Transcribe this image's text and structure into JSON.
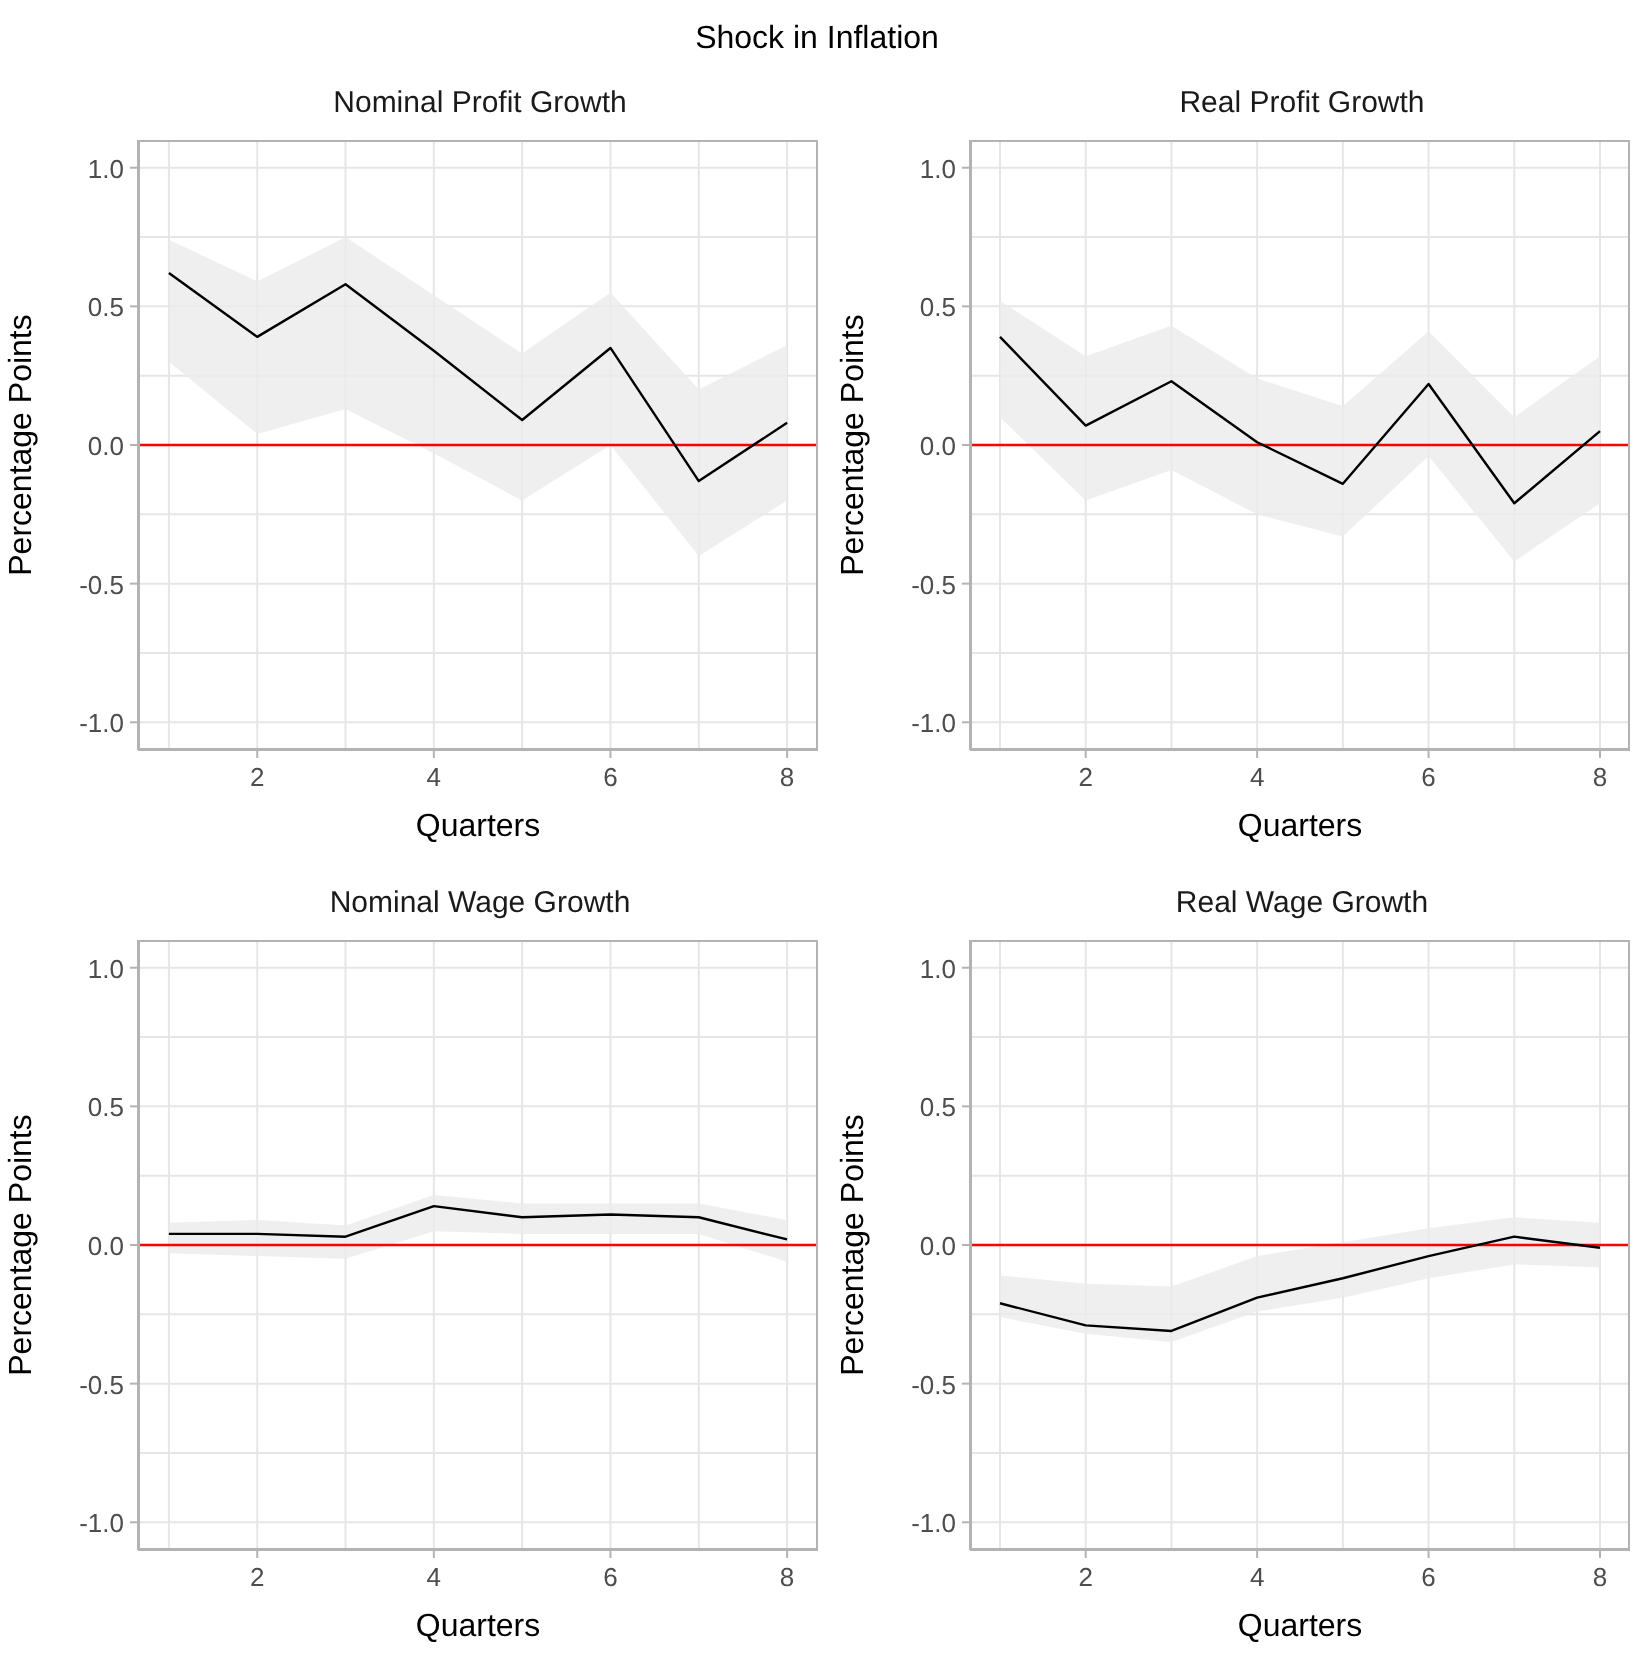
{
  "chart_data": [
    {
      "type": "line",
      "title": "Nominal Profit Growth",
      "annotations": [
        "Shock in Inflation"
      ],
      "xlabel": "Quarters",
      "ylabel": "Percentage Points",
      "x": [
        1,
        2,
        3,
        4,
        5,
        6,
        7,
        8
      ],
      "series": [
        {
          "color": "#000000",
          "values": [
            0.62,
            0.39,
            0.58,
            0.34,
            0.09,
            0.35,
            -0.13,
            0.08
          ],
          "lower": [
            0.3,
            0.04,
            0.13,
            -0.03,
            -0.2,
            0.0,
            -0.4,
            -0.2
          ],
          "upper": [
            0.74,
            0.59,
            0.75,
            0.54,
            0.33,
            0.55,
            0.2,
            0.36
          ]
        }
      ],
      "xlim": [
        0.65,
        8.35
      ],
      "xticks": [
        {
          "value": 1,
          "label": null
        },
        2,
        {
          "value": 3,
          "label": null
        },
        4,
        {
          "value": 5,
          "label": null
        },
        6,
        {
          "value": 7,
          "label": null
        },
        8
      ],
      "ylim": [
        -1.1,
        1.1
      ],
      "yticks": [
        {
          "value": -1,
          "label": "-1.0"
        },
        {
          "value": -0.75,
          "label": null
        },
        {
          "value": -0.5,
          "label": "-0.5"
        },
        {
          "value": -0.25,
          "label": null
        },
        {
          "value": 0,
          "label": "0.0"
        },
        {
          "value": 0.25,
          "label": null
        },
        {
          "value": 0.5,
          "label": "0.5"
        },
        {
          "value": 0.75,
          "label": null
        },
        {
          "value": 1,
          "label": "1.0"
        }
      ],
      "grid": true,
      "ref_lines": [
        {
          "axis": "y",
          "value": 0,
          "color": "#ff0000"
        }
      ]
    },
    {
      "type": "line",
      "title": "Real Profit Growth",
      "xlabel": "Quarters",
      "ylabel": "Percentage Points",
      "x": [
        1,
        2,
        3,
        4,
        5,
        6,
        7,
        8
      ],
      "series": [
        {
          "color": "#000000",
          "values": [
            0.39,
            0.07,
            0.23,
            0.01,
            -0.14,
            0.22,
            -0.21,
            0.05
          ],
          "lower": [
            0.1,
            -0.2,
            -0.09,
            -0.25,
            -0.33,
            -0.04,
            -0.42,
            -0.21
          ],
          "upper": [
            0.52,
            0.32,
            0.43,
            0.24,
            0.14,
            0.41,
            0.1,
            0.32
          ]
        }
      ],
      "xlim": [
        0.65,
        8.35
      ],
      "xticks": [
        {
          "value": 1,
          "label": null
        },
        2,
        {
          "value": 3,
          "label": null
        },
        4,
        {
          "value": 5,
          "label": null
        },
        6,
        {
          "value": 7,
          "label": null
        },
        8
      ],
      "ylim": [
        -1.1,
        1.1
      ],
      "yticks": [
        {
          "value": -1,
          "label": "-1.0"
        },
        {
          "value": -0.75,
          "label": null
        },
        {
          "value": -0.5,
          "label": "-0.5"
        },
        {
          "value": -0.25,
          "label": null
        },
        {
          "value": 0,
          "label": "0.0"
        },
        {
          "value": 0.25,
          "label": null
        },
        {
          "value": 0.5,
          "label": "0.5"
        },
        {
          "value": 0.75,
          "label": null
        },
        {
          "value": 1,
          "label": "1.0"
        }
      ],
      "grid": true,
      "ref_lines": [
        {
          "axis": "y",
          "value": 0,
          "color": "#ff0000"
        }
      ]
    },
    {
      "type": "line",
      "title": "Nominal Wage Growth",
      "xlabel": "Quarters",
      "ylabel": "Percentage Points",
      "x": [
        1,
        2,
        3,
        4,
        5,
        6,
        7,
        8
      ],
      "series": [
        {
          "color": "#000000",
          "values": [
            0.04,
            0.04,
            0.03,
            0.14,
            0.1,
            0.11,
            0.1,
            0.02
          ],
          "lower": [
            -0.03,
            -0.04,
            -0.05,
            0.05,
            0.04,
            0.04,
            0.04,
            -0.06
          ],
          "upper": [
            0.08,
            0.09,
            0.07,
            0.18,
            0.15,
            0.15,
            0.15,
            0.09
          ]
        }
      ],
      "xlim": [
        0.65,
        8.35
      ],
      "xticks": [
        {
          "value": 1,
          "label": null
        },
        2,
        {
          "value": 3,
          "label": null
        },
        4,
        {
          "value": 5,
          "label": null
        },
        6,
        {
          "value": 7,
          "label": null
        },
        8
      ],
      "ylim": [
        -1.1,
        1.1
      ],
      "yticks": [
        {
          "value": -1,
          "label": "-1.0"
        },
        {
          "value": -0.75,
          "label": null
        },
        {
          "value": -0.5,
          "label": "-0.5"
        },
        {
          "value": -0.25,
          "label": null
        },
        {
          "value": 0,
          "label": "0.0"
        },
        {
          "value": 0.25,
          "label": null
        },
        {
          "value": 0.5,
          "label": "0.5"
        },
        {
          "value": 0.75,
          "label": null
        },
        {
          "value": 1,
          "label": "1.0"
        }
      ],
      "grid": true,
      "ref_lines": [
        {
          "axis": "y",
          "value": 0,
          "color": "#ff0000"
        }
      ]
    },
    {
      "type": "line",
      "title": "Real Wage Growth",
      "xlabel": "Quarters",
      "ylabel": "Percentage Points",
      "x": [
        1,
        2,
        3,
        4,
        5,
        6,
        7,
        8
      ],
      "series": [
        {
          "color": "#000000",
          "values": [
            -0.21,
            -0.29,
            -0.31,
            -0.19,
            -0.12,
            -0.04,
            0.03,
            -0.01
          ],
          "lower": [
            -0.26,
            -0.32,
            -0.35,
            -0.24,
            -0.19,
            -0.12,
            -0.07,
            -0.08
          ],
          "upper": [
            -0.11,
            -0.14,
            -0.15,
            -0.04,
            0.01,
            0.06,
            0.1,
            0.08
          ]
        }
      ],
      "xlim": [
        0.65,
        8.35
      ],
      "xticks": [
        {
          "value": 1,
          "label": null
        },
        2,
        {
          "value": 3,
          "label": null
        },
        4,
        {
          "value": 5,
          "label": null
        },
        6,
        {
          "value": 7,
          "label": null
        },
        8
      ],
      "ylim": [
        -1.1,
        1.1
      ],
      "yticks": [
        {
          "value": -1,
          "label": "-1.0"
        },
        {
          "value": -0.75,
          "label": null
        },
        {
          "value": -0.5,
          "label": "-0.5"
        },
        {
          "value": -0.25,
          "label": null
        },
        {
          "value": 0,
          "label": "0.0"
        },
        {
          "value": 0.25,
          "label": null
        },
        {
          "value": 0.5,
          "label": "0.5"
        },
        {
          "value": 0.75,
          "label": null
        },
        {
          "value": 1,
          "label": "1.0"
        }
      ],
      "grid": true,
      "ref_lines": [
        {
          "axis": "y",
          "value": 0,
          "color": "#ff0000"
        }
      ]
    }
  ]
}
